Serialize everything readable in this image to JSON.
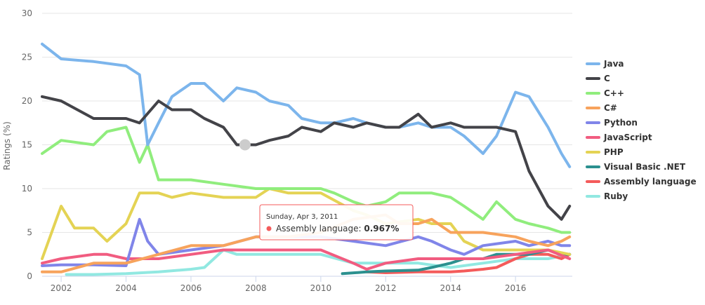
{
  "chart_data": {
    "type": "line",
    "ylabel": "Ratings (%)",
    "xlim": [
      "2001-06-01",
      "2017-10-01"
    ],
    "ylim": [
      0,
      30
    ],
    "xticks": [
      "2002",
      "2004",
      "2006",
      "2008",
      "2010",
      "2012",
      "2014",
      "2016"
    ],
    "yticks": [
      0,
      5,
      10,
      15,
      20,
      25,
      30
    ],
    "grid": true,
    "legend_position": "right",
    "series": [
      {
        "name": "Java",
        "color": "#7cb5ec",
        "x": [
          "2001-06-01",
          "2002-01-01",
          "2003-01-01",
          "2004-01-01",
          "2004-06-01",
          "2004-09-01",
          "2005-01-01",
          "2005-06-01",
          "2006-01-01",
          "2006-06-01",
          "2007-01-01",
          "2007-06-01",
          "2008-01-01",
          "2008-06-01",
          "2009-01-01",
          "2009-06-01",
          "2010-01-01",
          "2010-06-01",
          "2011-01-01",
          "2011-06-01",
          "2012-01-01",
          "2012-06-01",
          "2013-01-01",
          "2013-06-01",
          "2014-01-01",
          "2014-06-01",
          "2015-01-01",
          "2015-06-01",
          "2016-01-01",
          "2016-06-01",
          "2017-01-01",
          "2017-06-01",
          "2017-09-01"
        ],
        "y": [
          26.5,
          24.8,
          24.5,
          24.0,
          23.0,
          15.0,
          17.5,
          20.5,
          22.0,
          22.0,
          20.0,
          21.5,
          21.0,
          20.0,
          19.5,
          18.0,
          17.5,
          17.5,
          18.0,
          17.5,
          17.0,
          17.0,
          17.5,
          17.0,
          17.0,
          16.0,
          14.0,
          16.0,
          21.0,
          20.5,
          17.0,
          14.0,
          12.5
        ]
      },
      {
        "name": "C",
        "color": "#434348",
        "x": [
          "2001-06-01",
          "2002-01-01",
          "2003-01-01",
          "2004-01-01",
          "2004-06-01",
          "2005-01-01",
          "2005-06-01",
          "2006-01-01",
          "2006-06-01",
          "2007-01-01",
          "2007-06-01",
          "2008-01-01",
          "2008-06-01",
          "2009-01-01",
          "2009-06-01",
          "2010-01-01",
          "2010-06-01",
          "2011-01-01",
          "2011-06-01",
          "2012-01-01",
          "2012-06-01",
          "2013-01-01",
          "2013-06-01",
          "2014-01-01",
          "2014-06-01",
          "2015-01-01",
          "2015-06-01",
          "2016-01-01",
          "2016-06-01",
          "2017-01-01",
          "2017-06-01",
          "2017-09-01"
        ],
        "y": [
          20.5,
          20.0,
          18.0,
          18.0,
          17.5,
          20.0,
          19.0,
          19.0,
          18.0,
          17.0,
          15.0,
          15.0,
          15.5,
          16.0,
          17.0,
          16.5,
          17.5,
          17.0,
          17.5,
          17.0,
          17.0,
          18.5,
          17.0,
          17.5,
          17.0,
          17.0,
          17.0,
          16.5,
          12.0,
          8.0,
          6.5,
          8.0
        ]
      },
      {
        "name": "C++",
        "color": "#90ed7d",
        "x": [
          "2001-06-01",
          "2002-01-01",
          "2003-01-01",
          "2003-06-01",
          "2004-01-01",
          "2004-06-01",
          "2004-09-01",
          "2005-01-01",
          "2005-06-01",
          "2006-01-01",
          "2007-01-01",
          "2008-01-01",
          "2009-01-01",
          "2010-01-01",
          "2010-06-01",
          "2011-01-01",
          "2011-06-01",
          "2012-01-01",
          "2012-06-01",
          "2013-01-01",
          "2013-06-01",
          "2014-01-01",
          "2014-06-01",
          "2015-01-01",
          "2015-06-01",
          "2016-01-01",
          "2016-06-01",
          "2017-01-01",
          "2017-06-01",
          "2017-09-01"
        ],
        "y": [
          14.0,
          15.5,
          15.0,
          16.5,
          17.0,
          13.0,
          15.0,
          11.0,
          11.0,
          11.0,
          10.5,
          10.0,
          10.0,
          10.0,
          9.5,
          8.5,
          8.0,
          8.5,
          9.5,
          9.5,
          9.5,
          9.0,
          8.0,
          6.5,
          8.5,
          6.5,
          6.0,
          5.5,
          5.0,
          5.0
        ]
      },
      {
        "name": "C#",
        "color": "#f7a35c",
        "x": [
          "2001-06-01",
          "2002-01-01",
          "2003-01-01",
          "2004-01-01",
          "2005-01-01",
          "2006-01-01",
          "2007-01-01",
          "2008-01-01",
          "2009-01-01",
          "2010-01-01",
          "2011-01-01",
          "2012-01-01",
          "2012-06-01",
          "2013-01-01",
          "2013-06-01",
          "2014-01-01",
          "2015-01-01",
          "2016-01-01",
          "2016-06-01",
          "2017-01-01",
          "2017-06-01",
          "2017-09-01"
        ],
        "y": [
          0.5,
          0.5,
          1.5,
          1.5,
          2.5,
          3.5,
          3.5,
          4.5,
          4.5,
          5.0,
          6.5,
          7.0,
          6.0,
          6.0,
          6.5,
          5.0,
          5.0,
          4.5,
          4.0,
          3.5,
          4.0,
          4.5
        ]
      },
      {
        "name": "Python",
        "color": "#8085e9",
        "x": [
          "2001-06-01",
          "2002-01-01",
          "2003-01-01",
          "2004-01-01",
          "2004-06-01",
          "2004-09-01",
          "2005-01-01",
          "2006-01-01",
          "2007-01-01",
          "2008-01-01",
          "2009-01-01",
          "2010-01-01",
          "2011-01-01",
          "2012-01-01",
          "2013-01-01",
          "2013-06-01",
          "2014-01-01",
          "2014-06-01",
          "2015-01-01",
          "2016-01-01",
          "2016-06-01",
          "2017-01-01",
          "2017-06-01",
          "2017-09-01"
        ],
        "y": [
          1.2,
          1.3,
          1.3,
          1.2,
          6.5,
          4.0,
          2.5,
          3.0,
          3.5,
          4.5,
          4.5,
          4.5,
          4.0,
          3.5,
          4.5,
          4.0,
          3.0,
          2.5,
          3.5,
          4.0,
          3.5,
          4.0,
          3.5,
          3.5
        ]
      },
      {
        "name": "JavaScript",
        "color": "#f15c80",
        "x": [
          "2001-06-01",
          "2002-01-01",
          "2003-01-01",
          "2003-06-01",
          "2004-01-01",
          "2005-01-01",
          "2006-01-01",
          "2007-01-01",
          "2008-01-01",
          "2009-01-01",
          "2010-01-01",
          "2011-01-01",
          "2011-06-01",
          "2012-01-01",
          "2013-01-01",
          "2014-01-01",
          "2015-01-01",
          "2016-01-01",
          "2017-01-01",
          "2017-09-01"
        ],
        "y": [
          1.5,
          2.0,
          2.5,
          2.5,
          2.0,
          2.0,
          2.5,
          3.0,
          3.0,
          3.0,
          3.0,
          1.5,
          0.8,
          1.5,
          2.0,
          2.0,
          2.0,
          2.5,
          3.0,
          2.0
        ]
      },
      {
        "name": "PHP",
        "color": "#e4d354",
        "x": [
          "2001-06-01",
          "2002-01-01",
          "2002-06-01",
          "2003-01-01",
          "2003-06-01",
          "2004-01-01",
          "2004-06-01",
          "2005-01-01",
          "2005-06-01",
          "2006-01-01",
          "2007-01-01",
          "2008-01-01",
          "2008-06-01",
          "2009-01-01",
          "2010-01-01",
          "2011-01-01",
          "2011-06-01",
          "2012-01-01",
          "2013-01-01",
          "2013-06-01",
          "2014-01-01",
          "2014-06-01",
          "2015-01-01",
          "2016-01-01",
          "2017-01-01",
          "2017-09-01"
        ],
        "y": [
          2.0,
          8.0,
          5.5,
          5.5,
          4.0,
          6.0,
          9.5,
          9.5,
          9.0,
          9.5,
          9.0,
          9.0,
          10.0,
          9.5,
          9.5,
          7.5,
          7.0,
          6.0,
          6.5,
          6.0,
          6.0,
          4.0,
          3.0,
          3.0,
          3.0,
          2.5
        ]
      },
      {
        "name": "Visual Basic .NET",
        "color": "#2b908f",
        "x": [
          "2010-09-01",
          "2011-06-01",
          "2012-01-01",
          "2013-01-01",
          "2013-06-01",
          "2014-01-01",
          "2014-06-01",
          "2015-01-01",
          "2015-06-01",
          "2016-01-01",
          "2016-06-01",
          "2017-01-01",
          "2017-06-01",
          "2017-09-01"
        ],
        "y": [
          0.3,
          0.5,
          0.6,
          0.7,
          1.0,
          1.5,
          2.0,
          2.0,
          2.5,
          2.5,
          2.5,
          3.0,
          2.5,
          2.5
        ]
      },
      {
        "name": "Assembly language",
        "color": "#f45b5b",
        "x": [
          "2011-06-01",
          "2012-01-01",
          "2013-01-01",
          "2014-01-01",
          "2014-06-01",
          "2015-01-01",
          "2015-06-01",
          "2016-01-01",
          "2016-06-01",
          "2017-01-01",
          "2017-06-01",
          "2017-09-01"
        ],
        "y": [
          0.5,
          0.4,
          0.5,
          0.5,
          0.6,
          0.8,
          1.0,
          2.0,
          2.5,
          2.5,
          2.0,
          2.5
        ]
      },
      {
        "name": "Ruby",
        "color": "#91e8e1",
        "x": [
          "2002-03-01",
          "2003-01-01",
          "2004-01-01",
          "2005-01-01",
          "2006-01-01",
          "2006-06-01",
          "2007-01-01",
          "2007-06-01",
          "2008-01-01",
          "2009-01-01",
          "2010-01-01",
          "2011-01-01",
          "2012-01-01",
          "2013-01-01",
          "2014-01-01",
          "2015-01-01",
          "2016-01-01",
          "2017-01-01",
          "2017-09-01"
        ],
        "y": [
          0.2,
          0.2,
          0.3,
          0.5,
          0.8,
          1.0,
          3.0,
          2.5,
          2.5,
          2.5,
          2.5,
          1.5,
          1.5,
          1.5,
          1.0,
          1.5,
          2.0,
          2.0,
          2.5
        ]
      }
    ],
    "tooltip": {
      "date": "Sunday, Apr 3, 2011",
      "series": "Assembly language",
      "value": "0.967%",
      "color": "#f45b5b"
    },
    "hover_marker": {
      "series": "C",
      "x": "2007-09-01",
      "y": 15.0,
      "color": "#cccccc"
    }
  }
}
